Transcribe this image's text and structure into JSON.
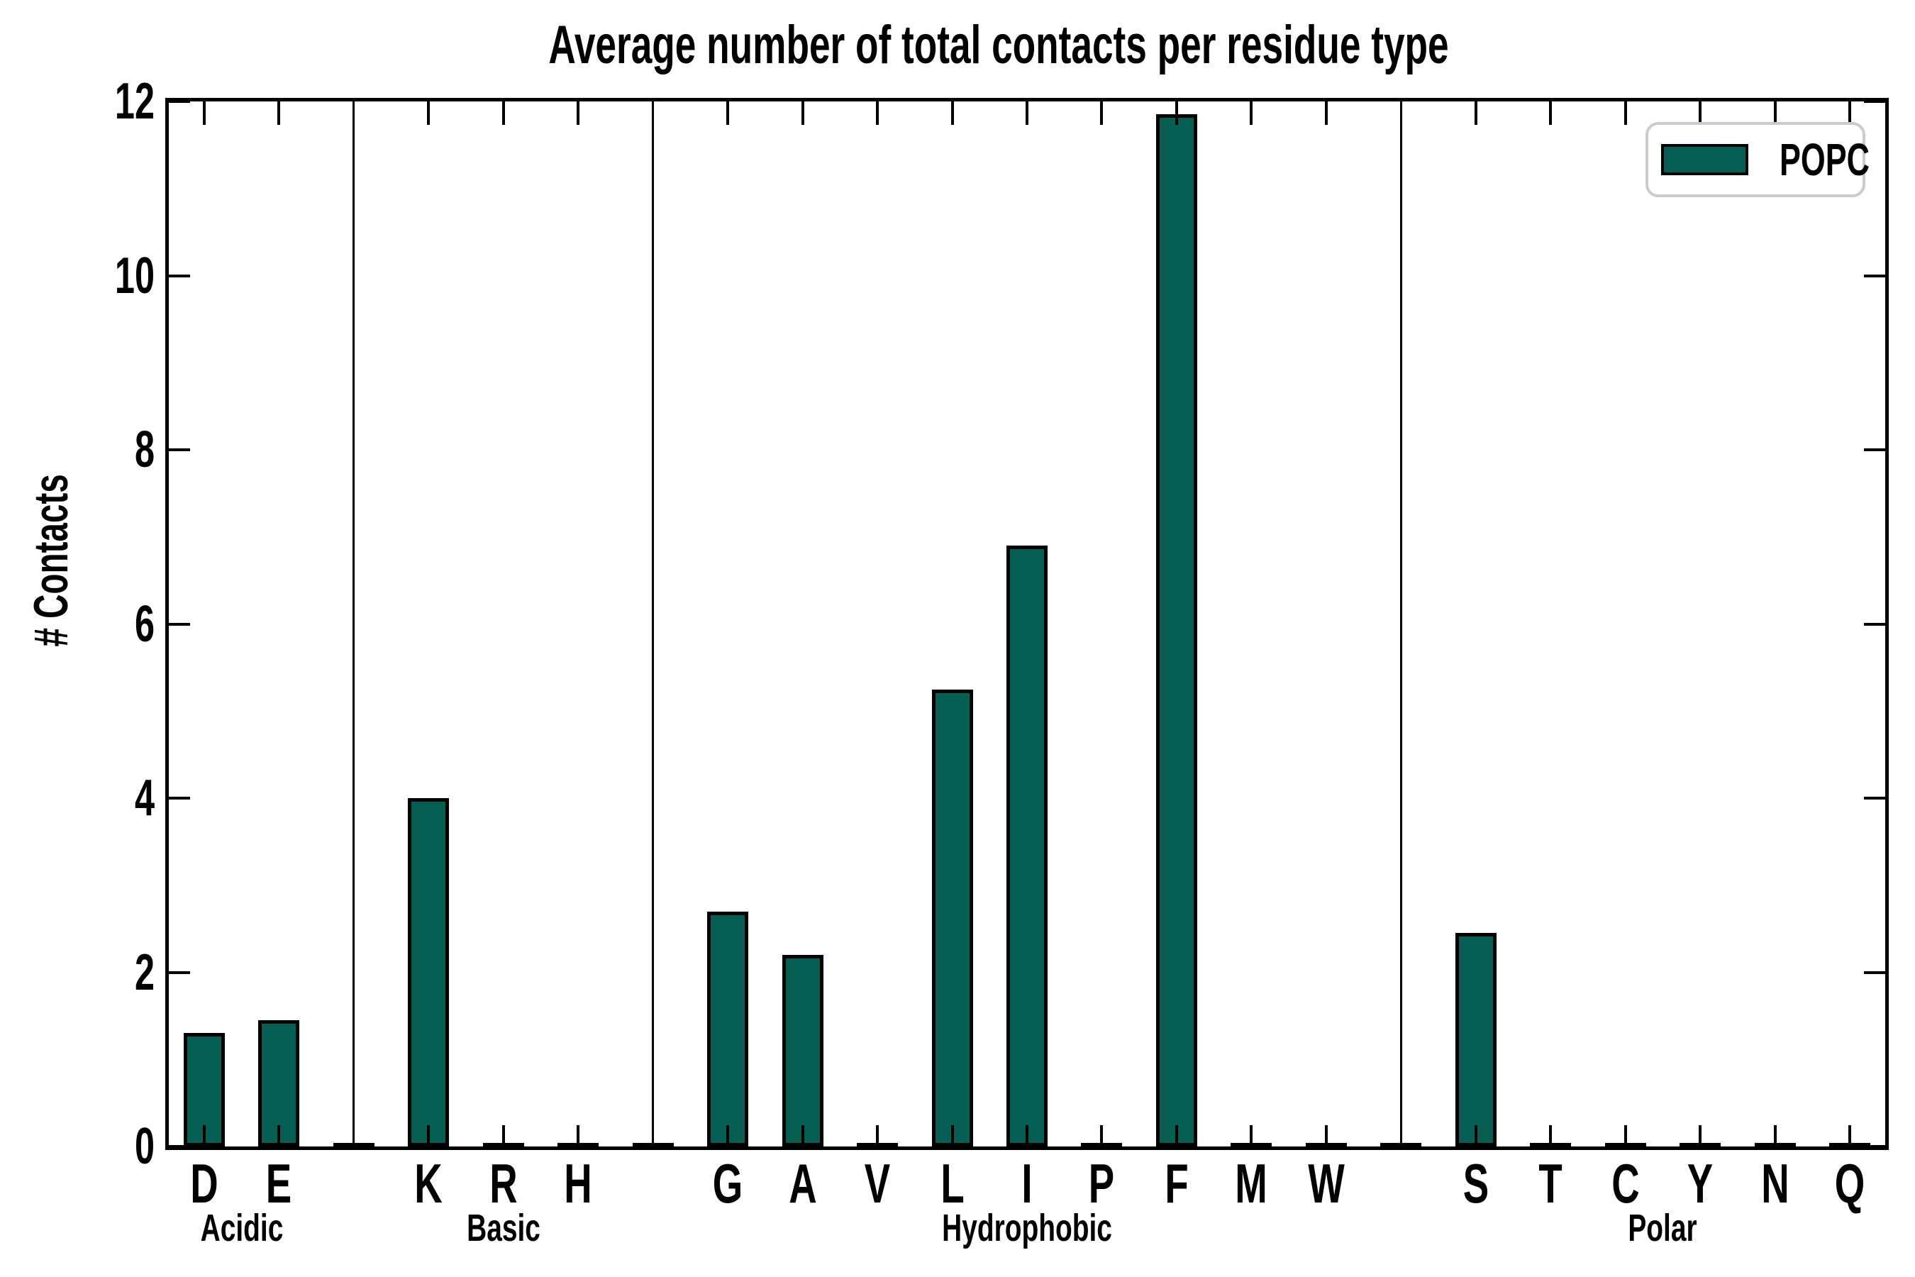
{
  "title": "Average number of total contacts per residue type",
  "y_axis": {
    "label": "# Contacts",
    "tick_labels": [
      "0",
      "2",
      "4",
      "6",
      "8",
      "10",
      "12"
    ]
  },
  "x_axis": {
    "group_labels": [
      "Acidic",
      "Basic",
      "Hydrophobic",
      "Polar"
    ]
  },
  "legend": {
    "label": "POPC"
  },
  "colors": {
    "bar_fill": "#065e52",
    "bar_edge": "#000000",
    "axis": "#000000",
    "legend_border": "#cbcbcb"
  },
  "chart_data": {
    "type": "bar",
    "title": "Average number of total contacts per residue type",
    "xlabel": "",
    "ylabel": "# Contacts",
    "ylim": [
      0,
      12
    ],
    "yticks": [
      0,
      2,
      4,
      6,
      8,
      10,
      12
    ],
    "grid": false,
    "legend_position": "upper-right",
    "series_name": "POPC",
    "bar_color": "#065e52",
    "categories": [
      "D",
      "E",
      "K",
      "R",
      "H",
      "G",
      "A",
      "V",
      "L",
      "I",
      "P",
      "F",
      "M",
      "W",
      "S",
      "T",
      "C",
      "Y",
      "N",
      "Q"
    ],
    "values": [
      1.3,
      1.45,
      4.0,
      0,
      0,
      2.7,
      2.2,
      0,
      5.25,
      6.9,
      0,
      11.85,
      0,
      0,
      2.45,
      0,
      0,
      0,
      0,
      0
    ],
    "groups": [
      {
        "name": "Acidic",
        "categories": [
          "D",
          "E"
        ],
        "values": [
          1.3,
          1.45
        ]
      },
      {
        "name": "Basic",
        "categories": [
          "K",
          "R",
          "H"
        ],
        "values": [
          4.0,
          0,
          0
        ]
      },
      {
        "name": "Hydrophobic",
        "categories": [
          "G",
          "A",
          "V",
          "L",
          "I",
          "P",
          "F",
          "M",
          "W"
        ],
        "values": [
          2.7,
          2.2,
          0,
          5.25,
          6.9,
          0,
          11.85,
          0,
          0
        ]
      },
      {
        "name": "Polar",
        "categories": [
          "S",
          "T",
          "C",
          "Y",
          "N",
          "Q"
        ],
        "values": [
          2.45,
          0,
          0,
          0,
          0,
          0
        ]
      }
    ]
  }
}
